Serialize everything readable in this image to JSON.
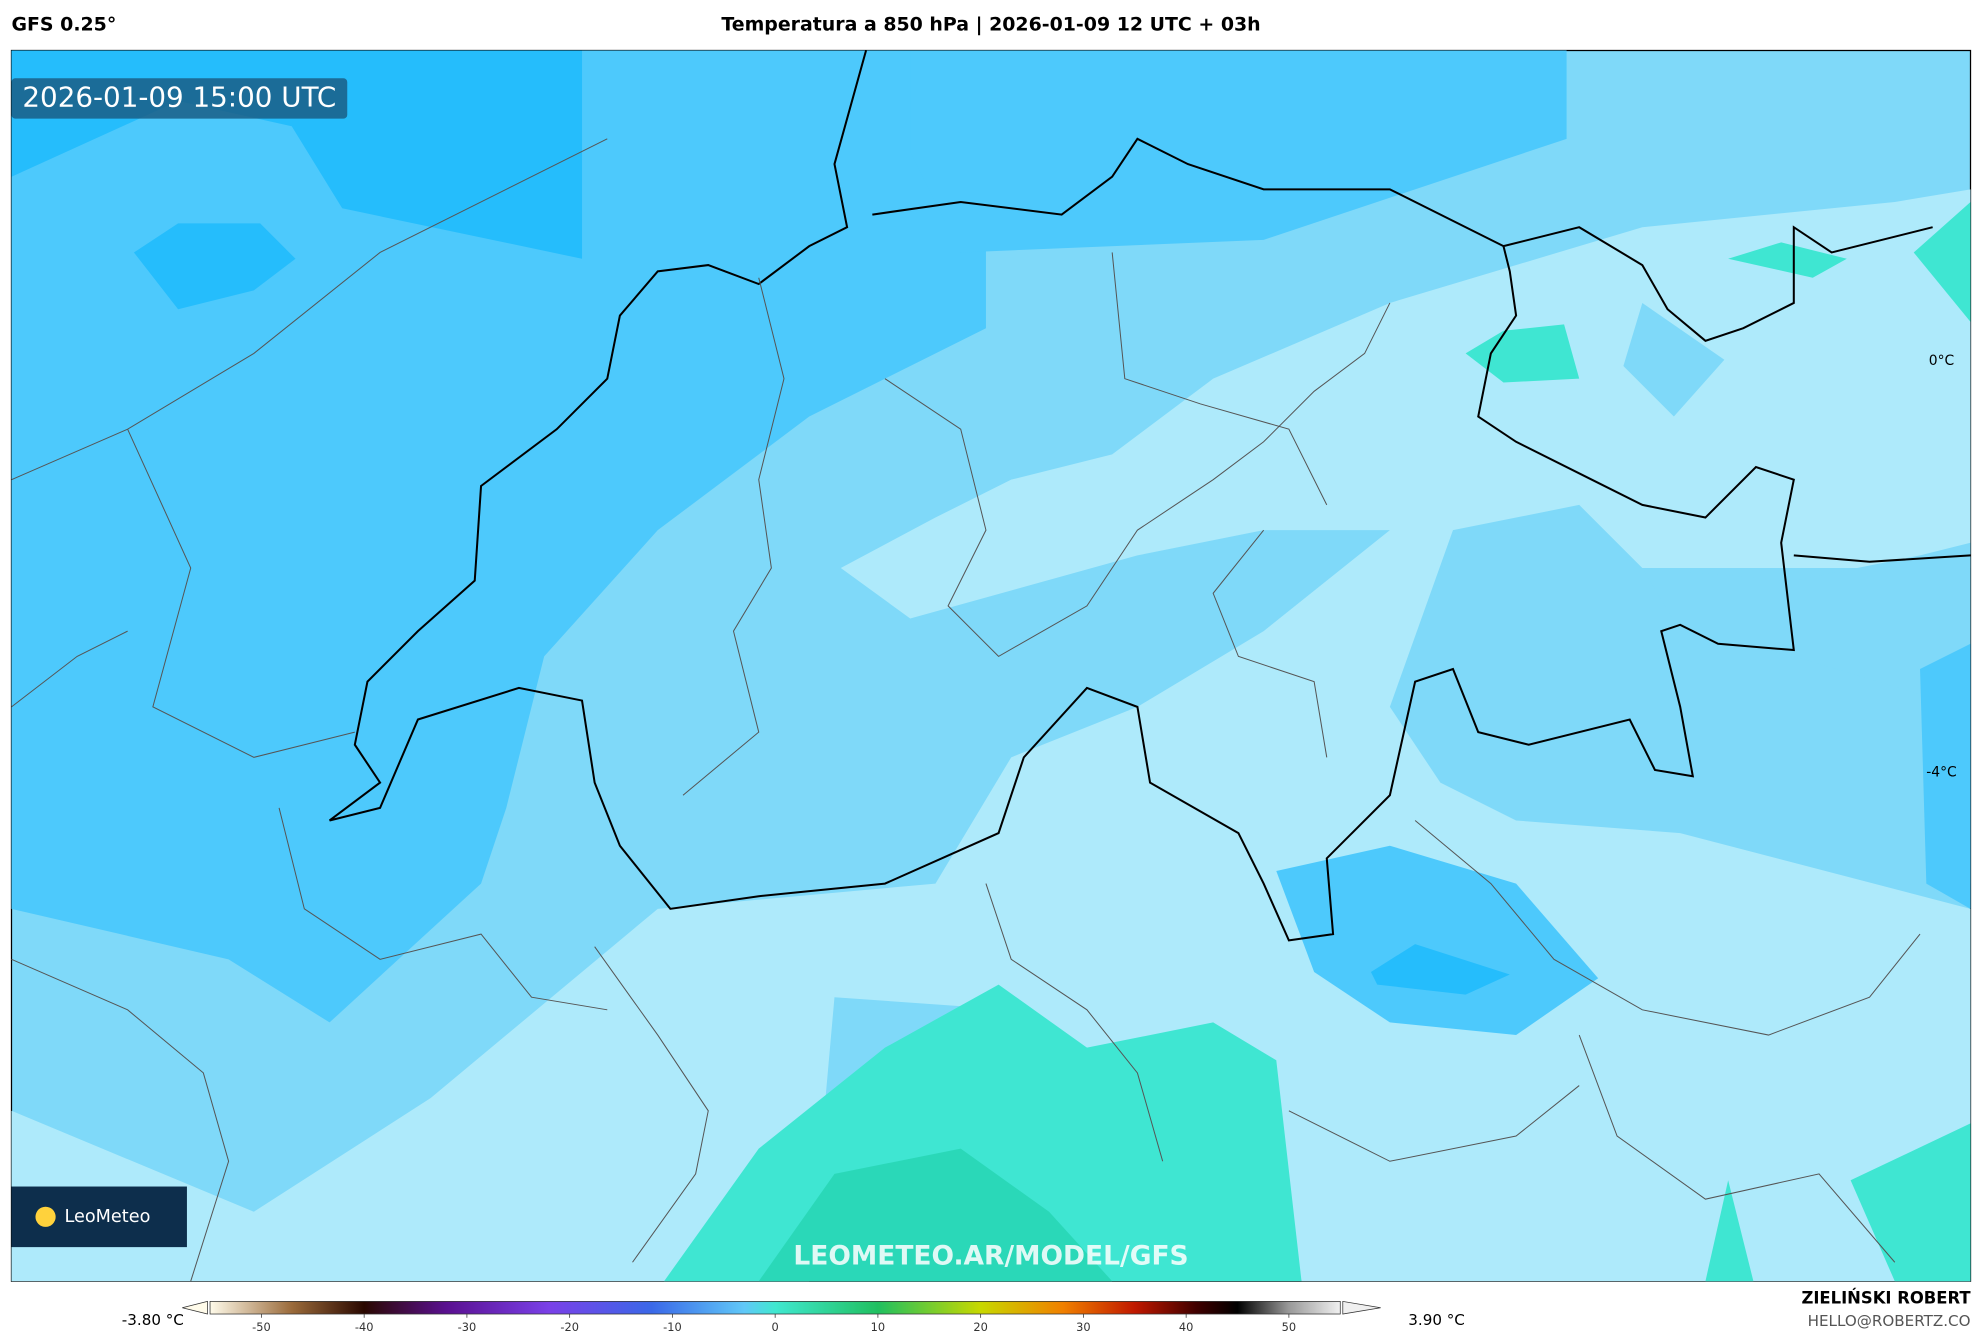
{
  "header": {
    "model": "GFS 0.25°",
    "title": "Temperatura a 850 hPa | 2026-01-09 12 UTC + 03h"
  },
  "map": {
    "timestamp": "2026-01-09 15:00 UTC",
    "contour_labels": [
      "0°C",
      "-4°C"
    ],
    "logo": "LeoMeteo",
    "watermark": "LEOMETEO.AR/MODEL/GFS"
  },
  "colorbar": {
    "min_label": "-3.80 °C",
    "max_label": "3.90 °C",
    "range": [
      -55,
      55
    ],
    "ticks": [
      -50,
      -40,
      -30,
      -20,
      -10,
      0,
      10,
      20,
      30,
      40,
      50
    ],
    "colorscale": [
      {
        "value": -55,
        "color": "#fffbea"
      },
      {
        "value": -47,
        "color": "#9a6a3a"
      },
      {
        "value": -40,
        "color": "#2a0800"
      },
      {
        "value": -32,
        "color": "#5a1090"
      },
      {
        "value": -22,
        "color": "#7a40e8"
      },
      {
        "value": -12,
        "color": "#3a68e8"
      },
      {
        "value": -3,
        "color": "#60c8f8"
      },
      {
        "value": 0,
        "color": "#40e8d0"
      },
      {
        "value": 10,
        "color": "#20c060"
      },
      {
        "value": 20,
        "color": "#c8d800"
      },
      {
        "value": 28,
        "color": "#f08000"
      },
      {
        "value": 35,
        "color": "#c01800"
      },
      {
        "value": 41,
        "color": "#400000"
      },
      {
        "value": 45,
        "color": "#000000"
      },
      {
        "value": 50,
        "color": "#999999"
      },
      {
        "value": 55,
        "color": "#f0f0f0"
      }
    ]
  },
  "footer": {
    "author": "ZIELIŃSKI ROBERT",
    "email": "HELLO@ROBERTZ.CO"
  }
}
